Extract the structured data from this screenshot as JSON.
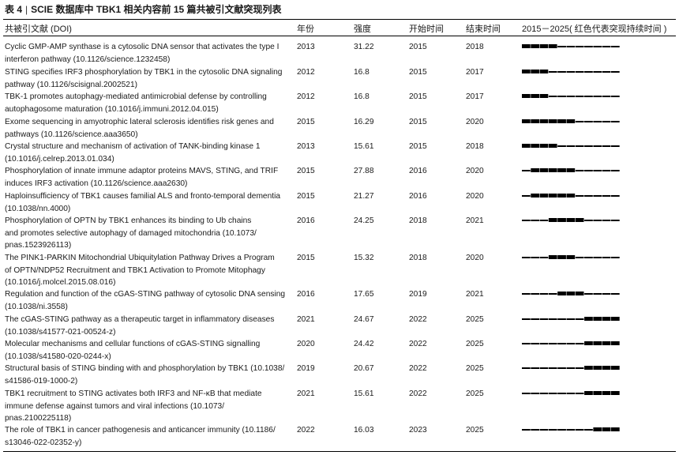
{
  "caption": {
    "label": "表 4",
    "separator": "|",
    "title": "SCIE 数据库中 TBK1 相关内容前 15 篇共被引文献突现列表"
  },
  "headers": {
    "ref": "共被引文献 (DOI)",
    "year": "年份",
    "strength": "强度",
    "begin": "开始时间",
    "end": "结束时间",
    "timeline": "2015－2025( 红色代表突现持续时间 )"
  },
  "timeline": {
    "first_year": 2015,
    "last_year": 2025
  },
  "rows": [
    {
      "ref_lines": [
        "Cyclic GMP-AMP synthase is a cytosolic DNA sensor that activates the type I",
        "interferon pathway (10.1126/science.1232458)"
      ],
      "year": "2013",
      "strength": "31.22",
      "begin": "2015",
      "end": "2018"
    },
    {
      "ref_lines": [
        "STING specifies IRF3 phosphorylation by TBK1 in the cytosolic DNA signaling",
        "pathway (10.1126/scisignal.2002521)"
      ],
      "year": "2012",
      "strength": "16.8",
      "begin": "2015",
      "end": "2017"
    },
    {
      "ref_lines": [
        "TBK-1 promotes autophagy-mediated antimicrobial defense by controlling",
        "autophagosome maturation (10.1016/j.immuni.2012.04.015)"
      ],
      "year": "2012",
      "strength": "16.8",
      "begin": "2015",
      "end": "2017"
    },
    {
      "ref_lines": [
        "Exome sequencing in amyotrophic lateral sclerosis identifies risk genes and",
        "pathways (10.1126/science.aaa3650)"
      ],
      "year": "2015",
      "strength": "16.29",
      "begin": "2015",
      "end": "2020"
    },
    {
      "ref_lines": [
        "Crystal structure and mechanism of activation of TANK-binding kinase 1",
        "(10.1016/j.celrep.2013.01.034)"
      ],
      "year": "2013",
      "strength": "15.61",
      "begin": "2015",
      "end": "2018"
    },
    {
      "ref_lines": [
        "Phosphorylation of innate immune adaptor proteins MAVS, STING, and TRIF",
        "induces IRF3 activation (10.1126/science.aaa2630)"
      ],
      "year": "2015",
      "strength": "27.88",
      "begin": "2016",
      "end": "2020"
    },
    {
      "ref_lines": [
        "Haploinsufficiency of TBK1 causes familial ALS and fronto-temporal dementia",
        "(10.1038/nn.4000)"
      ],
      "year": "2015",
      "strength": "21.27",
      "begin": "2016",
      "end": "2020"
    },
    {
      "ref_lines": [
        "Phosphorylation of OPTN by TBK1 enhances its binding to Ub chains",
        "and promotes selective autophagy of damaged mitochondria (10.1073/",
        "pnas.1523926113)"
      ],
      "year": "2016",
      "strength": "24.25",
      "begin": "2018",
      "end": "2021"
    },
    {
      "ref_lines": [
        "The PINK1-PARKIN Mitochondrial Ubiquitylation Pathway Drives a Program",
        "of OPTN/NDP52 Recruitment and TBK1 Activation to Promote Mitophagy",
        "(10.1016/j.molcel.2015.08.016)"
      ],
      "year": "2015",
      "strength": "15.32",
      "begin": "2018",
      "end": "2020"
    },
    {
      "ref_lines": [
        "Regulation and function of the cGAS-STING pathway of cytosolic DNA sensing",
        "(10.1038/ni.3558)"
      ],
      "year": "2016",
      "strength": "17.65",
      "begin": "2019",
      "end": "2021"
    },
    {
      "ref_lines": [
        "The cGAS-STING pathway as a therapeutic target in inflammatory diseases",
        "(10.1038/s41577-021-00524-z)"
      ],
      "year": "2021",
      "strength": "24.67",
      "begin": "2022",
      "end": "2025"
    },
    {
      "ref_lines": [
        "Molecular mechanisms and cellular functions of cGAS-STING signalling",
        "(10.1038/s41580-020-0244-x)"
      ],
      "year": "2020",
      "strength": "24.42",
      "begin": "2022",
      "end": "2025"
    },
    {
      "ref_lines": [
        "Structural basis of STING binding with and phosphorylation by TBK1 (10.1038/",
        "s41586-019-1000-2)"
      ],
      "year": "2019",
      "strength": "20.67",
      "begin": "2022",
      "end": "2025"
    },
    {
      "ref_lines": [
        "TBK1 recruitment to STING activates both IRF3 and NF-κB that mediate",
        "immune defense against tumors and viral infections (10.1073/",
        "pnas.2100225118)"
      ],
      "year": "2021",
      "strength": "15.61",
      "begin": "2022",
      "end": "2025"
    },
    {
      "ref_lines": [
        "The role of TBK1 in cancer pathogenesis and anticancer immunity (10.1186/",
        "s13046-022-02352-y)"
      ],
      "year": "2022",
      "strength": "16.03",
      "begin": "2023",
      "end": "2025"
    }
  ],
  "colors": {
    "text": "#1a1a1a",
    "rule": "#000000",
    "bar": "#000000"
  }
}
